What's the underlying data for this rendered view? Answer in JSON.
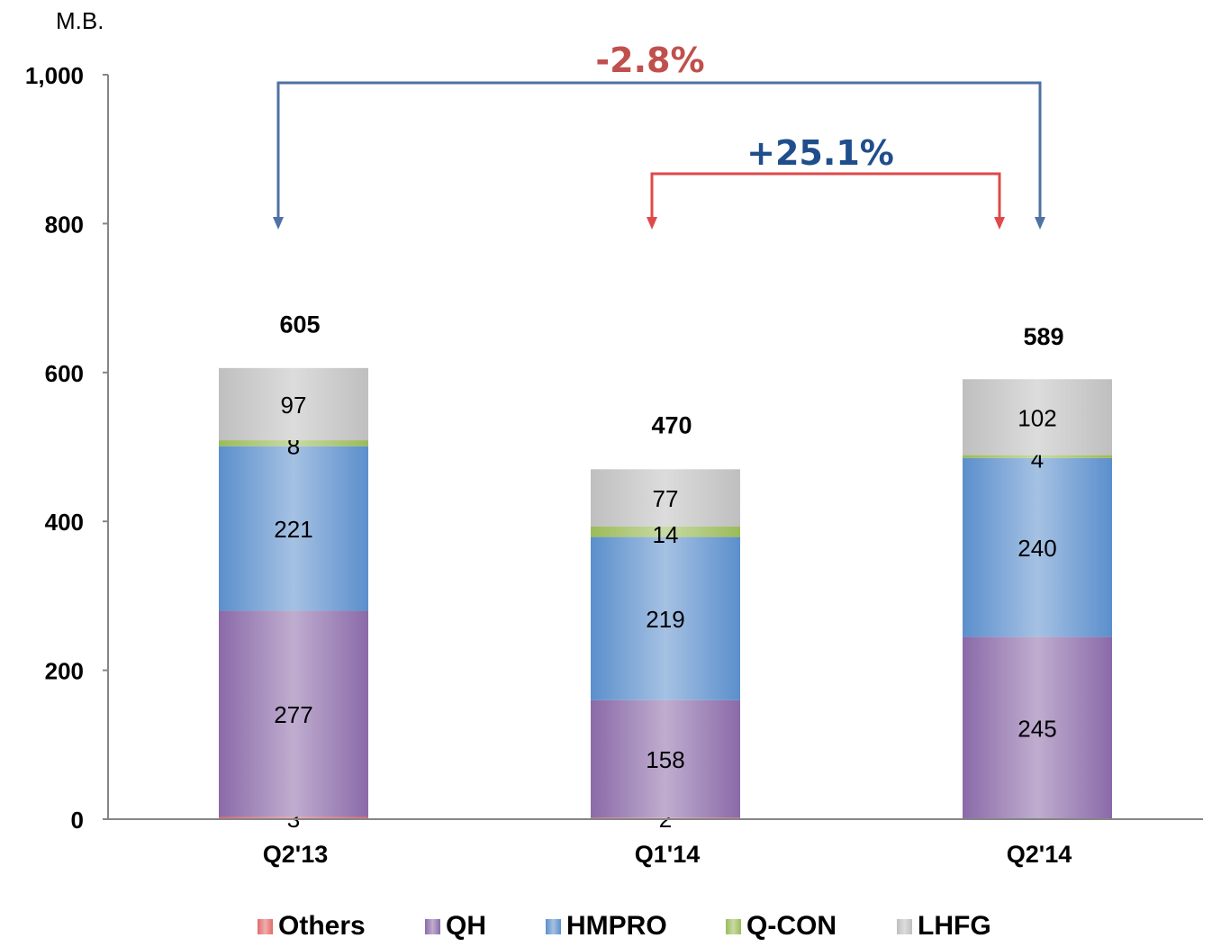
{
  "unit_label": "M.B.",
  "chart_data": {
    "type": "bar",
    "stacked": true,
    "categories": [
      "Q2'13",
      "Q1'14",
      "Q2'14"
    ],
    "series": [
      {
        "name": "Others",
        "values": [
          3,
          2,
          0
        ],
        "labels": [
          "3",
          "2",
          ""
        ],
        "color": "#e26b6b"
      },
      {
        "name": "QH",
        "values": [
          277,
          158,
          245
        ],
        "labels": [
          "277",
          "158",
          "245"
        ],
        "color": "#8a6aa8"
      },
      {
        "name": "HMPRO",
        "values": [
          221,
          219,
          240
        ],
        "labels": [
          "221",
          "219",
          "240"
        ],
        "color": "#5b8fcc"
      },
      {
        "name": "Q-CON",
        "values": [
          8,
          14,
          4
        ],
        "labels": [
          "8",
          "14",
          "4"
        ],
        "color": "#9bbb59"
      },
      {
        "name": "LHFG",
        "values": [
          97,
          77,
          102
        ],
        "labels": [
          "97",
          "77",
          "102"
        ],
        "color": "#bfbfbf"
      }
    ],
    "totals": [
      605,
      470,
      589
    ],
    "total_labels": [
      "605",
      "470",
      "589"
    ],
    "ylim": [
      0,
      1000
    ],
    "yticks": [
      0,
      200,
      400,
      600,
      800,
      1000
    ],
    "ytick_labels": [
      "0",
      "200",
      "400",
      "600",
      "800",
      "1,000"
    ],
    "xlabel": "",
    "ylabel": "",
    "title": "",
    "legend_position": "bottom",
    "grid": false,
    "annotations": [
      {
        "text": "-2.8%",
        "from": "Q2'13",
        "to": "Q2'14",
        "color": "#c0504d",
        "bracket_color": "#4f71a5"
      },
      {
        "text": "+25.1%",
        "from": "Q1'14",
        "to": "Q2'14",
        "color": "#1f4e8c",
        "bracket_color": "#e0484a"
      }
    ]
  }
}
